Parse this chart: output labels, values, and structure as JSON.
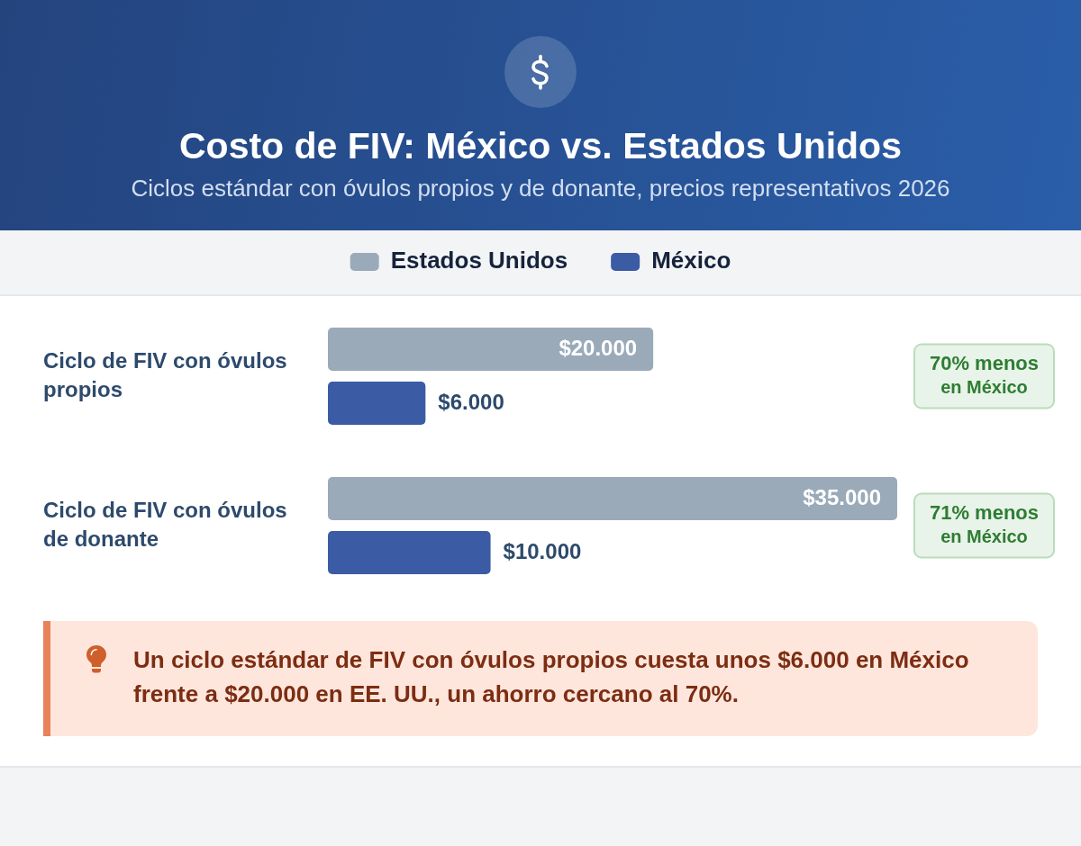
{
  "chart_data": {
    "type": "bar",
    "orientation": "horizontal",
    "title": "Costo de FIV: México vs. Estados Unidos",
    "subtitle": "Ciclos estándar con óvulos propios y de donante, precios representativos 2026",
    "categories": [
      "Ciclo de FIV con óvulos propios",
      "Ciclo de FIV con óvulos de donante"
    ],
    "series": [
      {
        "name": "Estados Unidos",
        "color": "#9aaab9",
        "values": [
          20000,
          35000
        ],
        "value_labels": [
          "$20.000",
          "$35.000"
        ]
      },
      {
        "name": "México",
        "color": "#3c5ba5",
        "values": [
          6000,
          10000
        ],
        "value_labels": [
          "$6.000",
          "$10.000"
        ]
      }
    ],
    "xlim": [
      0,
      35000
    ],
    "tick_labels": "y",
    "legend": "top",
    "grid": false,
    "annotations": [
      "70% menos\nen México",
      "71% menos\nen México",
      "Un ciclo estándar de FIV con óvulos propios cuesta unos $6.000 en México frente a $20.000 en EE. UU., un ahorro cercano al 70%."
    ]
  }
}
